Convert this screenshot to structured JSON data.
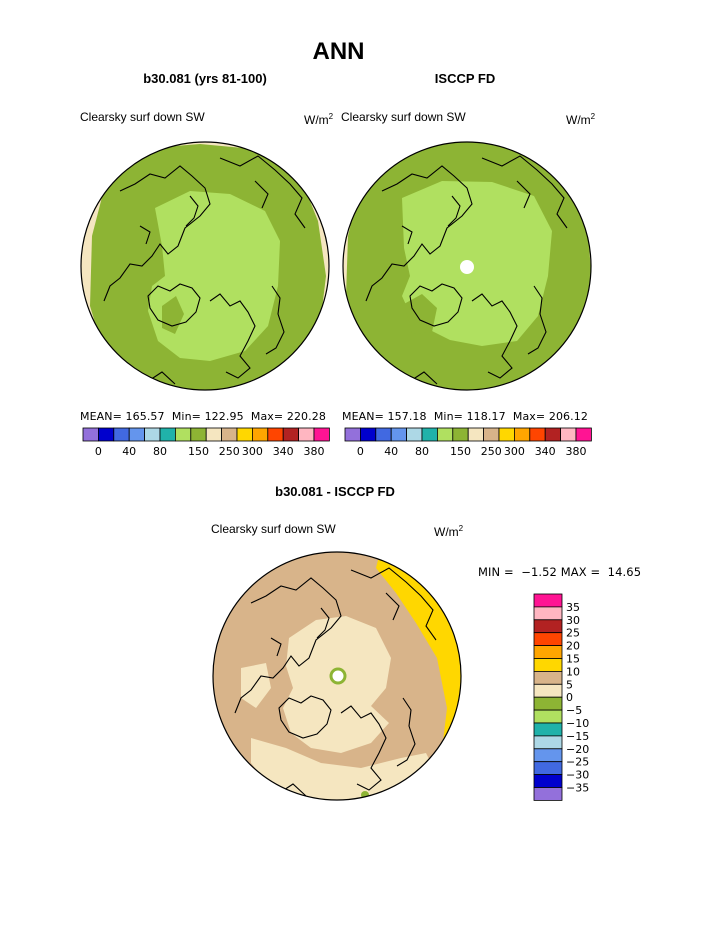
{
  "page_title": "ANN",
  "panels": [
    {
      "subtitle": "b30.081 (yrs 81-100)",
      "variable": "Clearsky surf down SW",
      "units": "W/m",
      "units_exp": "2",
      "stats": {
        "mean_label": "MEAN=",
        "mean": "165.57",
        "min_label": "Min=",
        "min": "122.95",
        "max_label": "Max=",
        "max": "220.28"
      }
    },
    {
      "subtitle": "ISCCP FD",
      "variable": "Clearsky surf down SW",
      "units": "W/m",
      "units_exp": "2",
      "stats": {
        "mean_label": "MEAN=",
        "mean": "157.18",
        "min_label": "Min=",
        "min": "118.17",
        "max_label": "Max=",
        "max": "206.12"
      }
    }
  ],
  "top_colorbar": {
    "colors": [
      "#9370db",
      "#0000cd",
      "#4169e1",
      "#6495ed",
      "#add8e6",
      "#20b2aa",
      "#b0e060",
      "#8db434",
      "#f5e6c0",
      "#d8b48a",
      "#ffd700",
      "#ffa500",
      "#ff4500",
      "#b22222",
      "#ffb6c1",
      "#ff1493"
    ],
    "tick_labels": [
      "0",
      "40",
      "80",
      "150",
      "250",
      "300",
      "340",
      "380"
    ]
  },
  "diff_panel": {
    "subtitle": "b30.081 - ISCCP FD",
    "variable": "Clearsky surf down SW",
    "units": "W/m",
    "units_exp": "2",
    "stats_text": "MIN =  −1.52 MAX =  14.65"
  },
  "diff_colorbar": {
    "colors": [
      "#ff1493",
      "#ffb6c1",
      "#b22222",
      "#ff4500",
      "#ffa500",
      "#ffd700",
      "#d8b48a",
      "#f5e6c0",
      "#8db434",
      "#b0e060",
      "#20b2aa",
      "#add8e6",
      "#6495ed",
      "#4169e1",
      "#0000cd",
      "#9370db"
    ],
    "tick_labels": [
      "35",
      "30",
      "25",
      "20",
      "15",
      "10",
      "5",
      "0",
      "−5",
      "−10",
      "−15",
      "−20",
      "−25",
      "−30",
      "−35"
    ]
  },
  "chart_data": [
    {
      "type": "heatmap",
      "title": "b30.081 (yrs 81-100)",
      "variable": "Clearsky surf down SW",
      "units": "W/m^2",
      "projection": "north polar stereographic",
      "mean": 165.57,
      "min": 122.95,
      "max": 220.28,
      "levels": [
        0,
        40,
        80,
        150,
        250,
        300,
        340,
        380
      ]
    },
    {
      "type": "heatmap",
      "title": "ISCCP FD",
      "variable": "Clearsky surf down SW",
      "units": "W/m^2",
      "projection": "north polar stereographic",
      "mean": 157.18,
      "min": 118.17,
      "max": 206.12,
      "levels": [
        0,
        40,
        80,
        150,
        250,
        300,
        340,
        380
      ]
    },
    {
      "type": "heatmap",
      "title": "b30.081 - ISCCP FD",
      "variable": "Clearsky surf down SW",
      "units": "W/m^2",
      "projection": "north polar stereographic",
      "min": -1.52,
      "max": 14.65,
      "levels": [
        -35,
        -30,
        -25,
        -20,
        -15,
        -10,
        -5,
        0,
        5,
        10,
        15,
        20,
        25,
        30,
        35
      ]
    }
  ]
}
